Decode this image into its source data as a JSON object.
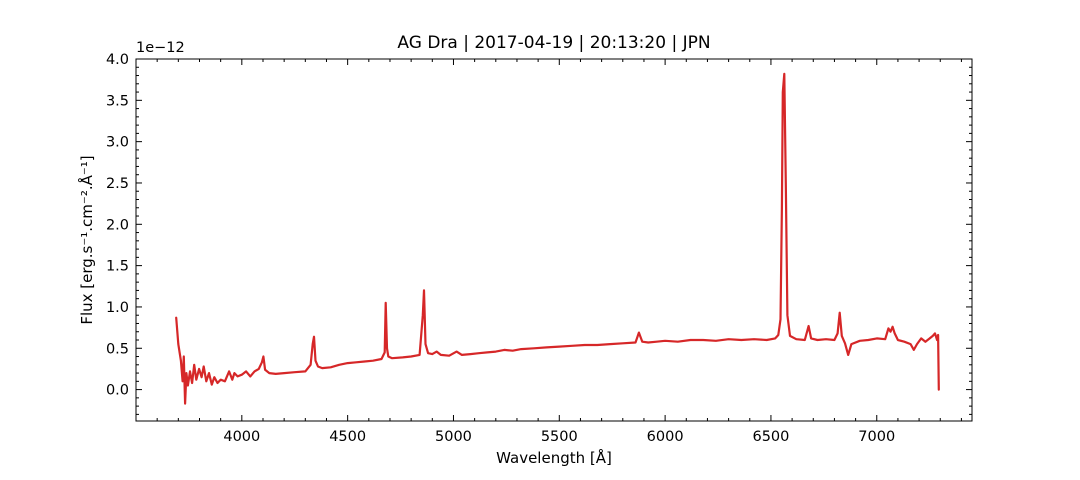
{
  "chart_data": {
    "type": "line",
    "title": "AG Dra | 2017-04-19 | 20:13:20 | JPN",
    "xlabel": "Wavelength [Å]",
    "ylabel": "Flux [erg.s⁻¹.cm⁻².Å⁻¹]",
    "y_offset_label": "1e−12",
    "xlim": [
      3500,
      7450
    ],
    "ylim": [
      -0.38,
      4.0
    ],
    "x_ticks": [
      4000,
      4500,
      5000,
      5500,
      6000,
      6500,
      7000
    ],
    "x_tick_labels": [
      "4000",
      "4500",
      "5000",
      "5500",
      "6000",
      "6500",
      "7000"
    ],
    "y_ticks": [
      0.0,
      0.5,
      1.0,
      1.5,
      2.0,
      2.5,
      3.0,
      3.5,
      4.0
    ],
    "y_tick_labels": [
      "0.0",
      "0.5",
      "1.0",
      "1.5",
      "2.0",
      "2.5",
      "3.0",
      "3.5",
      "4.0"
    ],
    "grid": false,
    "line_color": "#d62728",
    "series": [
      {
        "x": [
          3690,
          3700,
          3712,
          3720,
          3726,
          3732,
          3738,
          3745,
          3755,
          3765,
          3775,
          3785,
          3798,
          3810,
          3820,
          3832,
          3845,
          3858,
          3870,
          3885,
          3900,
          3920,
          3940,
          3955,
          3965,
          3980,
          4000,
          4020,
          4040,
          4060,
          4080,
          4095,
          4102,
          4110,
          4130,
          4160,
          4200,
          4250,
          4300,
          4325,
          4335,
          4341,
          4348,
          4360,
          4380,
          4420,
          4460,
          4500,
          4540,
          4580,
          4620,
          4660,
          4675,
          4680,
          4686,
          4692,
          4710,
          4760,
          4800,
          4840,
          4855,
          4861,
          4868,
          4880,
          4900,
          4921,
          4940,
          4980,
          5015,
          5040,
          5080,
          5120,
          5160,
          5200,
          5240,
          5280,
          5320,
          5380,
          5440,
          5500,
          5560,
          5620,
          5680,
          5740,
          5800,
          5860,
          5876,
          5892,
          5920,
          5960,
          6000,
          6060,
          6120,
          6180,
          6240,
          6300,
          6360,
          6420,
          6480,
          6520,
          6535,
          6545,
          6552,
          6556,
          6563,
          6570,
          6578,
          6590,
          6620,
          6660,
          6678,
          6690,
          6720,
          6760,
          6800,
          6815,
          6825,
          6835,
          6850,
          6865,
          6880,
          6920,
          6960,
          7000,
          7040,
          7055,
          7065,
          7075,
          7085,
          7100,
          7130,
          7160,
          7175,
          7190,
          7210,
          7230,
          7250,
          7265,
          7275,
          7285,
          7290,
          7293
        ],
        "y": [
          0.87,
          0.55,
          0.35,
          0.1,
          0.4,
          -0.17,
          0.2,
          0.05,
          0.22,
          0.08,
          0.3,
          0.12,
          0.25,
          0.15,
          0.28,
          0.1,
          0.2,
          0.06,
          0.15,
          0.08,
          0.12,
          0.1,
          0.22,
          0.12,
          0.2,
          0.16,
          0.18,
          0.22,
          0.16,
          0.22,
          0.25,
          0.33,
          0.4,
          0.24,
          0.2,
          0.19,
          0.2,
          0.21,
          0.22,
          0.3,
          0.55,
          0.64,
          0.35,
          0.28,
          0.26,
          0.27,
          0.3,
          0.32,
          0.33,
          0.34,
          0.35,
          0.37,
          0.45,
          1.05,
          0.5,
          0.4,
          0.38,
          0.39,
          0.4,
          0.42,
          0.9,
          1.2,
          0.55,
          0.44,
          0.43,
          0.46,
          0.42,
          0.41,
          0.46,
          0.42,
          0.43,
          0.44,
          0.45,
          0.46,
          0.48,
          0.47,
          0.49,
          0.5,
          0.51,
          0.52,
          0.53,
          0.54,
          0.54,
          0.55,
          0.56,
          0.57,
          0.69,
          0.58,
          0.57,
          0.58,
          0.59,
          0.58,
          0.6,
          0.6,
          0.59,
          0.61,
          0.6,
          0.61,
          0.6,
          0.62,
          0.66,
          0.85,
          2.2,
          3.6,
          3.82,
          2.5,
          0.9,
          0.65,
          0.61,
          0.6,
          0.77,
          0.62,
          0.6,
          0.61,
          0.6,
          0.68,
          0.93,
          0.65,
          0.56,
          0.42,
          0.55,
          0.59,
          0.6,
          0.62,
          0.61,
          0.74,
          0.7,
          0.76,
          0.68,
          0.6,
          0.58,
          0.55,
          0.48,
          0.55,
          0.62,
          0.58,
          0.62,
          0.65,
          0.68,
          0.6,
          0.66,
          0.0
        ]
      }
    ]
  }
}
